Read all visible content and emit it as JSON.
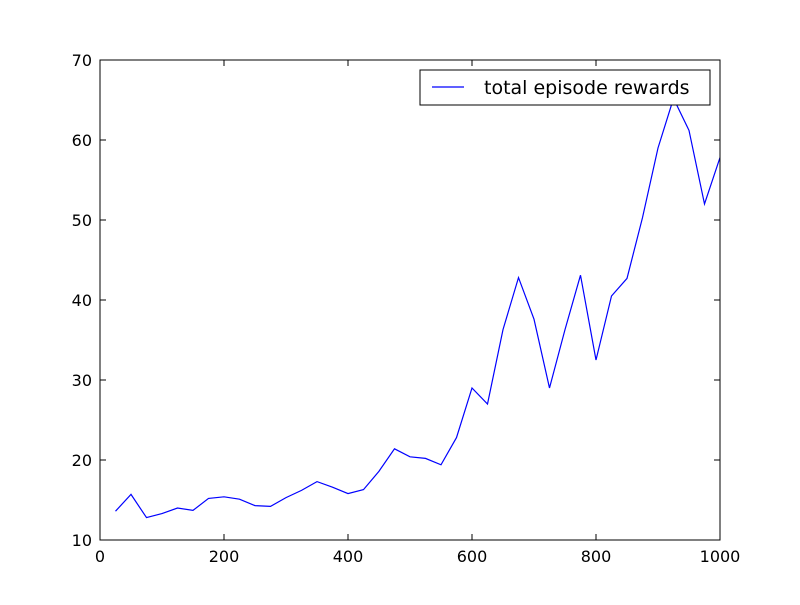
{
  "chart_data": {
    "type": "line",
    "title": "",
    "xlabel": "",
    "ylabel": "",
    "xlim": [
      0,
      1000
    ],
    "ylim": [
      10,
      70
    ],
    "xticks": [
      0,
      200,
      400,
      600,
      800,
      1000
    ],
    "yticks": [
      10,
      20,
      30,
      40,
      50,
      60,
      70
    ],
    "grid": false,
    "legend_position": "top-right",
    "series": [
      {
        "name": "total episode rewards",
        "color": "#0000ff",
        "x": [
          25,
          50,
          75,
          100,
          125,
          150,
          175,
          200,
          225,
          250,
          275,
          300,
          325,
          350,
          375,
          400,
          425,
          450,
          475,
          500,
          525,
          550,
          575,
          600,
          625,
          650,
          675,
          700,
          725,
          750,
          775,
          800,
          825,
          850,
          875,
          900,
          925,
          950,
          975,
          1000
        ],
        "y": [
          13.6,
          15.7,
          12.8,
          13.3,
          14.0,
          13.7,
          15.2,
          15.4,
          15.1,
          14.3,
          14.2,
          15.3,
          16.2,
          17.3,
          16.6,
          15.8,
          16.3,
          18.6,
          21.4,
          20.4,
          20.2,
          19.4,
          22.8,
          29.0,
          27.0,
          36.3,
          42.8,
          37.6,
          29.0,
          36.3,
          43.1,
          32.5,
          40.5,
          42.7,
          50.3,
          59.0,
          65.2,
          61.2,
          52.0,
          57.8
        ]
      }
    ]
  }
}
